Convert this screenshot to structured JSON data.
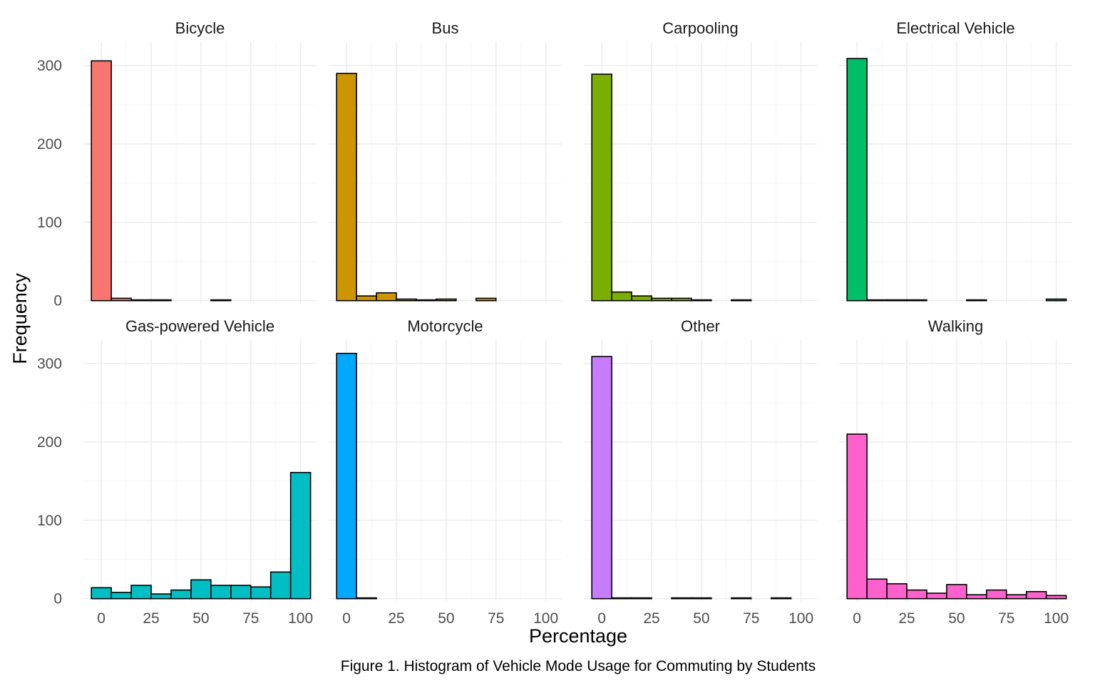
{
  "chart_data": {
    "type": "bar",
    "subtype": "faceted-histogram",
    "xlabel": "Percentage",
    "ylabel": "Frequency",
    "caption": "Figure 1. Histogram of Vehicle Mode Usage for Commuting by Students",
    "bin_width": 10,
    "bin_centers": [
      0,
      10,
      20,
      30,
      40,
      50,
      60,
      70,
      80,
      90,
      100
    ],
    "x_ticks": [
      0,
      25,
      50,
      75,
      100
    ],
    "x_tick_labels": [
      "0",
      "25",
      "50",
      "75",
      "100"
    ],
    "xlim": [
      -9,
      108
    ],
    "y_ticks": [
      0,
      100,
      200,
      300
    ],
    "y_tick_labels": [
      "0",
      "100",
      "200",
      "300"
    ],
    "ylim": [
      -3,
      330
    ],
    "facet_rows": 2,
    "facet_cols": 4,
    "series": [
      {
        "name": "Bicycle",
        "color": "#F8766D",
        "values": [
          306,
          3,
          1,
          1,
          0,
          0,
          1,
          0,
          0,
          0,
          0
        ]
      },
      {
        "name": "Bus",
        "color": "#CD9600",
        "values": [
          290,
          6,
          10,
          2,
          1,
          2,
          0,
          3,
          0,
          0,
          0
        ]
      },
      {
        "name": "Carpooling",
        "color": "#7CAE00",
        "values": [
          289,
          11,
          6,
          3,
          3,
          1,
          0,
          1,
          0,
          0,
          0
        ]
      },
      {
        "name": "Electrical Vehicle",
        "color": "#00BE67",
        "values": [
          309,
          1,
          1,
          1,
          0,
          0,
          1,
          0,
          0,
          0,
          2
        ]
      },
      {
        "name": "Gas-powered Vehicle",
        "color": "#00BFC4",
        "values": [
          14,
          8,
          17,
          6,
          11,
          24,
          17,
          17,
          15,
          34,
          161
        ]
      },
      {
        "name": "Motorcycle",
        "color": "#00A9FF",
        "values": [
          313,
          1,
          0,
          0,
          0,
          0,
          0,
          0,
          0,
          0,
          0
        ]
      },
      {
        "name": "Other",
        "color": "#C77CFF",
        "values": [
          309,
          1,
          1,
          0,
          1,
          1,
          0,
          1,
          0,
          1,
          0
        ]
      },
      {
        "name": "Walking",
        "color": "#FF61CC",
        "values": [
          210,
          25,
          19,
          11,
          7,
          18,
          5,
          11,
          5,
          9,
          4
        ]
      }
    ]
  }
}
